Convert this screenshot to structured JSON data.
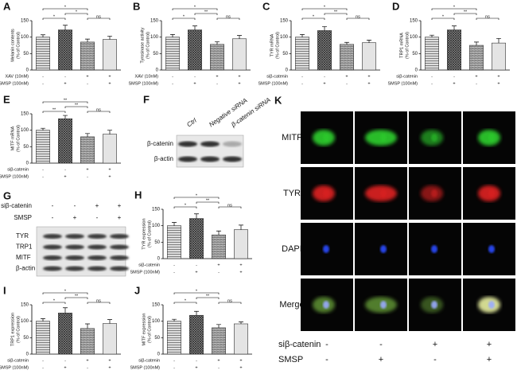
{
  "chart_data": [
    {
      "type": "bar",
      "panel": "A",
      "ylabel": [
        "Melanin contents",
        "(% of Control)"
      ],
      "values": [
        100,
        122,
        85,
        93
      ],
      "errors": [
        7,
        14,
        9,
        10
      ],
      "ylim": [
        0,
        150
      ],
      "yticks": [
        0,
        50,
        100,
        150
      ],
      "brackets": [
        "*",
        "*",
        "*",
        "ns"
      ],
      "treatments": [
        {
          "label": "XAV (10nM)",
          "signs": [
            "-",
            "-",
            "+",
            "+"
          ]
        },
        {
          "label": "SMSP (100nM)",
          "signs": [
            "-",
            "+",
            "-",
            "+"
          ]
        }
      ]
    },
    {
      "type": "bar",
      "panel": "B",
      "ylabel": [
        "Tyrosinase activity",
        "(% of Control)"
      ],
      "values": [
        100,
        122,
        78,
        95
      ],
      "errors": [
        8,
        12,
        8,
        10
      ],
      "ylim": [
        0,
        150
      ],
      "yticks": [
        0,
        50,
        100,
        150
      ],
      "brackets": [
        "*",
        "*",
        "**",
        "ns"
      ],
      "treatments": [
        {
          "label": "XAV (10nM)",
          "signs": [
            "-",
            "-",
            "+",
            "+"
          ]
        },
        {
          "label": "SMSP (100nM)",
          "signs": [
            "-",
            "+",
            "-",
            "+"
          ]
        }
      ]
    },
    {
      "type": "bar",
      "panel": "C",
      "ylabel": [
        "TYR mRNA",
        "(% of Control)"
      ],
      "values": [
        100,
        120,
        78,
        83
      ],
      "errors": [
        8,
        12,
        6,
        8
      ],
      "ylim": [
        0,
        150
      ],
      "yticks": [
        0,
        50,
        100,
        150
      ],
      "brackets": [
        "*",
        "*",
        "**",
        "ns"
      ],
      "treatments": [
        {
          "label": "siβ-catenin",
          "signs": [
            "-",
            "-",
            "+",
            "+"
          ]
        },
        {
          "label": "SMSP (100nM)",
          "signs": [
            "-",
            "+",
            "-",
            "+"
          ]
        }
      ]
    },
    {
      "type": "bar",
      "panel": "D",
      "ylabel": [
        "TRP1 mRNA",
        "(% of Control)"
      ],
      "values": [
        100,
        122,
        75,
        82
      ],
      "errors": [
        6,
        12,
        10,
        14
      ],
      "ylim": [
        0,
        150
      ],
      "yticks": [
        0,
        50,
        100,
        150
      ],
      "brackets": [
        "*",
        "*",
        "**",
        "ns"
      ],
      "treatments": [
        {
          "label": "siβ-catenin",
          "signs": [
            "-",
            "-",
            "+",
            "+"
          ]
        },
        {
          "label": "SMSP (100nM)",
          "signs": [
            "-",
            "+",
            "-",
            "+"
          ]
        }
      ]
    },
    {
      "type": "bar",
      "panel": "E",
      "ylabel": [
        "MITF mRNA",
        "(% of Control)"
      ],
      "values": [
        100,
        135,
        80,
        88
      ],
      "errors": [
        6,
        10,
        10,
        12
      ],
      "ylim": [
        0,
        150
      ],
      "yticks": [
        0,
        50,
        100,
        150
      ],
      "brackets": [
        "**",
        "**",
        "**",
        "ns"
      ],
      "treatments": [
        {
          "label": "siβ-catenin",
          "signs": [
            "-",
            "-",
            "+",
            "+"
          ]
        },
        {
          "label": "SMSP (100nM)",
          "signs": [
            "-",
            "+",
            "-",
            "+"
          ]
        }
      ]
    },
    {
      "type": "bar",
      "panel": "H",
      "ylabel": [
        "TYR expression",
        "(% of Control)"
      ],
      "values": [
        100,
        122,
        72,
        88
      ],
      "errors": [
        10,
        14,
        12,
        14
      ],
      "ylim": [
        0,
        150
      ],
      "yticks": [
        0,
        50,
        100,
        150
      ],
      "brackets": [
        "*",
        "*",
        "**",
        "ns"
      ],
      "treatments": [
        {
          "label": "siβ-catenin",
          "signs": [
            "-",
            "-",
            "+",
            "+"
          ]
        },
        {
          "label": "SMSP (100nM)",
          "signs": [
            "-",
            "+",
            "-",
            "+"
          ]
        }
      ]
    },
    {
      "type": "bar",
      "panel": "I",
      "ylabel": [
        "TRP1 expression",
        "(% of Control)"
      ],
      "values": [
        100,
        125,
        78,
        93
      ],
      "errors": [
        8,
        16,
        14,
        12
      ],
      "ylim": [
        0,
        150
      ],
      "yticks": [
        0,
        50,
        100,
        150
      ],
      "brackets": [
        "*",
        "*",
        "**",
        "ns"
      ],
      "treatments": [
        {
          "label": "siβ-catenin",
          "signs": [
            "-",
            "-",
            "+",
            "+"
          ]
        },
        {
          "label": "SMSP (100nM)",
          "signs": [
            "-",
            "+",
            "-",
            "+"
          ]
        }
      ]
    },
    {
      "type": "bar",
      "panel": "J",
      "ylabel": [
        "MITF expression",
        "(% of Control)"
      ],
      "values": [
        100,
        118,
        80,
        92
      ],
      "errors": [
        6,
        12,
        10,
        6
      ],
      "ylim": [
        0,
        150
      ],
      "yticks": [
        0,
        50,
        100,
        150
      ],
      "brackets": [
        "*",
        "*",
        "**",
        "ns"
      ],
      "treatments": [
        {
          "label": "siβ-catenin",
          "signs": [
            "-",
            "-",
            "+",
            "+"
          ]
        },
        {
          "label": "SMSP (100nM)",
          "signs": [
            "-",
            "+",
            "-",
            "+"
          ]
        }
      ]
    }
  ],
  "blot_f": {
    "panel": "F",
    "columns": [
      "Ctrl",
      "Negative siRNA",
      "β-catenin siRNA"
    ],
    "rows": [
      "β-catenin",
      "β-actin"
    ]
  },
  "blot_g": {
    "panel": "G",
    "treatments": [
      {
        "label": "siβ-catenin",
        "signs": [
          "-",
          "-",
          "+",
          "+"
        ]
      },
      {
        "label": "SMSP",
        "signs": [
          "-",
          "+",
          "-",
          "+"
        ]
      }
    ],
    "rows": [
      "TYR",
      "TRP1",
      "MITF",
      "β-actin"
    ]
  },
  "images_k": {
    "panel": "K",
    "rows": [
      "MITF",
      "TYR",
      "DAPI",
      "Merge"
    ],
    "treatments": [
      {
        "label": "siβ-catenin",
        "signs": [
          "-",
          "-",
          "+",
          "+"
        ]
      },
      {
        "label": "SMSP",
        "signs": [
          "-",
          "+",
          "-",
          "+"
        ]
      }
    ]
  }
}
